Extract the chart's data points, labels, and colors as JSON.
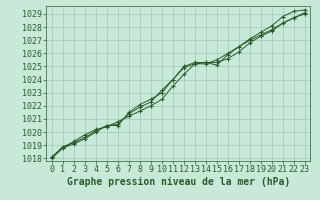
{
  "title": "Graphe pression niveau de la mer (hPa)",
  "bg_color": "#c8e8d8",
  "grid_color": "#a0c8b8",
  "line_color": "#2d5a2d",
  "xlim": [
    -0.5,
    23.5
  ],
  "ylim": [
    1017.8,
    1029.6
  ],
  "yticks": [
    1018,
    1019,
    1020,
    1021,
    1022,
    1023,
    1024,
    1025,
    1026,
    1027,
    1028,
    1029
  ],
  "xticks": [
    0,
    1,
    2,
    3,
    4,
    5,
    6,
    7,
    8,
    9,
    10,
    11,
    12,
    13,
    14,
    15,
    16,
    17,
    18,
    19,
    20,
    21,
    22,
    23
  ],
  "series1_x": [
    0,
    1,
    2,
    3,
    4,
    5,
    6,
    7,
    8,
    9,
    10,
    11,
    12,
    13,
    14,
    15,
    16,
    17,
    18,
    19,
    20,
    21,
    22,
    23
  ],
  "series1_y": [
    1018.0,
    1018.8,
    1019.1,
    1019.5,
    1020.0,
    1020.5,
    1020.5,
    1021.5,
    1022.1,
    1022.5,
    1023.0,
    1024.0,
    1025.0,
    1025.3,
    1025.3,
    1025.1,
    1025.9,
    1026.5,
    1027.1,
    1027.6,
    1028.1,
    1028.8,
    1029.2,
    1029.3
  ],
  "series2_x": [
    0,
    1,
    2,
    3,
    4,
    5,
    6,
    7,
    8,
    9,
    10,
    11,
    12,
    13,
    14,
    15,
    16,
    17,
    18,
    19,
    20,
    21,
    22,
    23
  ],
  "series2_y": [
    1018.1,
    1018.8,
    1019.3,
    1019.8,
    1020.2,
    1020.4,
    1020.8,
    1021.2,
    1021.6,
    1022.0,
    1022.5,
    1023.5,
    1024.4,
    1025.2,
    1025.3,
    1025.3,
    1025.6,
    1026.1,
    1026.8,
    1027.3,
    1027.7,
    1028.3,
    1028.7,
    1029.1
  ],
  "series3_x": [
    0,
    1,
    2,
    3,
    4,
    5,
    6,
    7,
    8,
    9,
    10,
    11,
    12,
    13,
    14,
    15,
    16,
    17,
    18,
    19,
    20,
    21,
    22,
    23
  ],
  "series3_y": [
    1018.1,
    1018.9,
    1019.2,
    1019.6,
    1020.1,
    1020.5,
    1020.6,
    1021.4,
    1021.9,
    1022.3,
    1023.2,
    1024.0,
    1024.9,
    1025.2,
    1025.2,
    1025.5,
    1026.0,
    1026.5,
    1027.0,
    1027.4,
    1027.8,
    1028.3,
    1028.7,
    1029.0
  ],
  "tick_fontsize": 6,
  "xlabel_fontsize": 7,
  "tick_color": "#2d5a2d",
  "spine_color": "#2d5a2d"
}
